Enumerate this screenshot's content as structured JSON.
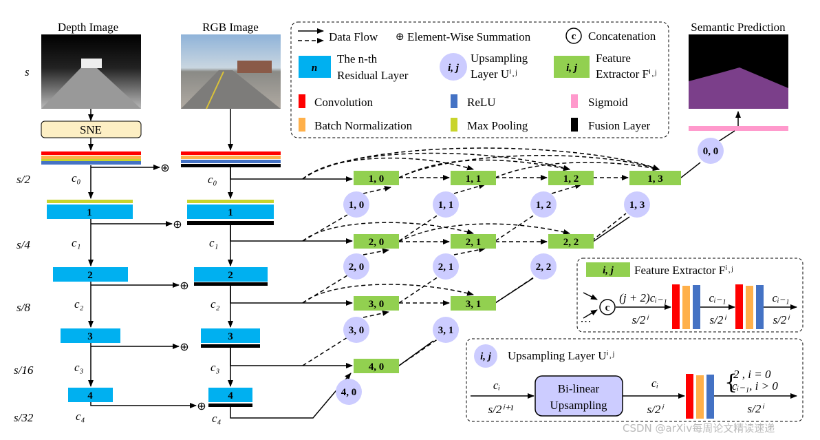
{
  "titles": {
    "depth": "Depth Image",
    "rgb": "RGB Image",
    "prediction": "Semantic Prediction"
  },
  "scales": [
    "s",
    "s/2",
    "s/4",
    "s/8",
    "s/16",
    "s/32"
  ],
  "channels": [
    "c₀",
    "c₁",
    "c₂",
    "c₃",
    "c₄"
  ],
  "sne_label": "SNE",
  "residual_layers": [
    "1",
    "2",
    "3",
    "4"
  ],
  "feature_extractors": [
    "1, 0",
    "1, 1",
    "1, 2",
    "1, 3",
    "2, 0",
    "2, 1",
    "2, 2",
    "3, 0",
    "3, 1",
    "4, 0"
  ],
  "upsampling_layers": [
    "1, 0",
    "1, 1",
    "1, 2",
    "1, 3",
    "2, 0",
    "2, 1",
    "2, 2",
    "3, 0",
    "3, 1",
    "4, 0",
    "0, 0"
  ],
  "legend": {
    "data_flow": "Data Flow",
    "summation": "Element-Wise Summation",
    "concat_symbol": "c",
    "concatenation": "Concatenation",
    "residual_symbol": "n",
    "residual_line1": "The n-th",
    "residual_line2": "Residual Layer",
    "up_symbol": "i, j",
    "up_line1": "Upsampling",
    "up_line2": "Layer Uⁱ˒ʲ",
    "fe_symbol": "i, j",
    "fe_line1": "Feature",
    "fe_line2": "Extractor Fⁱ˒ʲ",
    "convolution": "Convolution",
    "relu": "ReLU",
    "sigmoid": "Sigmoid",
    "batch_norm": "Batch Normalization",
    "max_pooling": "Max Pooling",
    "fusion": "Fusion Layer"
  },
  "fe_detail": {
    "symbol": "i, j",
    "title": "Feature Extractor Fⁱ˒ʲ",
    "concat_symbol": "c",
    "in_channels": "(j + 2)cᵢ₋₁",
    "scale": "s/2ⁱ",
    "mid_channels": "cᵢ₋₁",
    "out_channels": "cᵢ₋₁"
  },
  "up_detail": {
    "symbol": "i, j",
    "title": "Upsampling Layer Uⁱ˒ʲ",
    "in_channels": "cᵢ",
    "in_scale": "s/2ⁱ⁺¹",
    "block_line1": "Bi-linear",
    "block_line2": "Upsampling",
    "mid_channels": "cᵢ",
    "mid_scale": "s/2ⁱ",
    "out_case1": "2  , i = 0",
    "out_case2": "cᵢ₋₁, i > 0",
    "out_scale": "s/2ⁱ"
  },
  "watermark": "CSDN @arXiv每周论文精读速递",
  "colors": {
    "convolution": "#ff0000",
    "batch_norm": "#ffb04a",
    "relu": "#4472c4",
    "sigmoid": "#ff99cc",
    "max_pooling": "#c8d42c",
    "fusion": "#000000",
    "residual": "#00b0f0",
    "feature_extractor": "#92d050",
    "upsampling": "#ccccff",
    "sne": "#fdefc4"
  }
}
